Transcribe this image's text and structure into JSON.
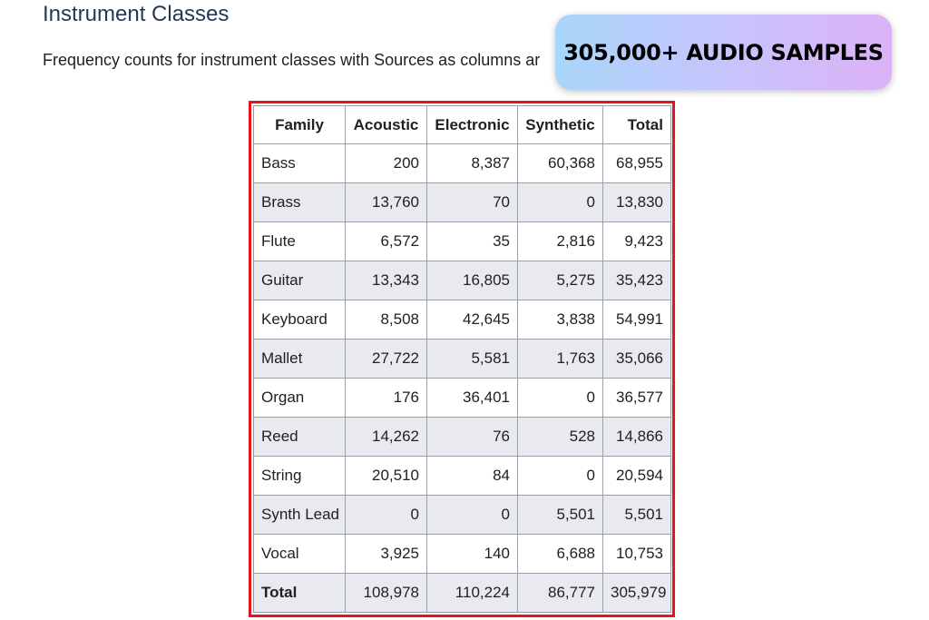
{
  "heading": "Instrument Classes",
  "description": "Frequency counts for instrument classes with Sources as columns ar",
  "badge": {
    "text": "305,000+ AUDIO SAMPLES"
  },
  "table": {
    "columns": [
      "Family",
      "Acoustic",
      "Electronic",
      "Synthetic",
      "Total"
    ],
    "rows": [
      [
        "Bass",
        "200",
        "8,387",
        "60,368",
        "68,955"
      ],
      [
        "Brass",
        "13,760",
        "70",
        "0",
        "13,830"
      ],
      [
        "Flute",
        "6,572",
        "35",
        "2,816",
        "9,423"
      ],
      [
        "Guitar",
        "13,343",
        "16,805",
        "5,275",
        "35,423"
      ],
      [
        "Keyboard",
        "8,508",
        "42,645",
        "3,838",
        "54,991"
      ],
      [
        "Mallet",
        "27,722",
        "5,581",
        "1,763",
        "35,066"
      ],
      [
        "Organ",
        "176",
        "36,401",
        "0",
        "36,577"
      ],
      [
        "Reed",
        "14,262",
        "76",
        "528",
        "14,866"
      ],
      [
        "String",
        "20,510",
        "84",
        "0",
        "20,594"
      ],
      [
        "Synth Lead",
        "0",
        "0",
        "5,501",
        "5,501"
      ],
      [
        "Vocal",
        "3,925",
        "140",
        "6,688",
        "10,753"
      ]
    ],
    "total_row": [
      "Total",
      "108,978",
      "110,224",
      "86,777",
      "305,979"
    ]
  }
}
